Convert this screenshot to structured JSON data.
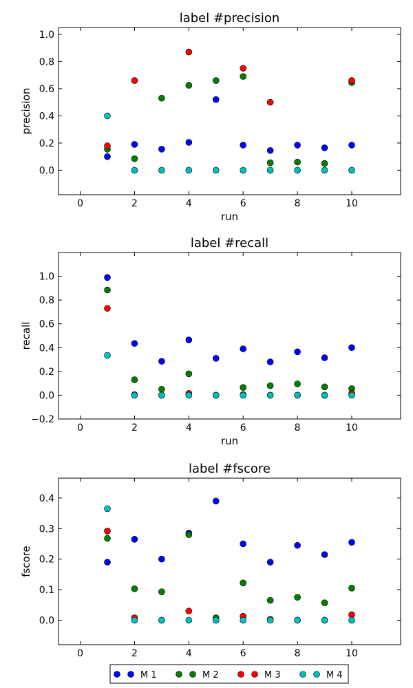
{
  "chart_data": [
    {
      "type": "scatter",
      "title": "label #precision",
      "xlabel": "run",
      "ylabel": "precision",
      "xlim": [
        -0.8,
        11.8
      ],
      "ylim": [
        -0.18,
        1.05
      ],
      "x_ticks": [
        0,
        2,
        4,
        6,
        8,
        10
      ],
      "x_tick_labels": [
        "0",
        "2",
        "4",
        "6",
        "8",
        "10"
      ],
      "y_ticks": [
        0.0,
        0.2,
        0.4,
        0.6,
        0.8,
        1.0
      ],
      "y_tick_labels": [
        "0.0",
        "0.2",
        "0.4",
        "0.6",
        "0.8",
        "1.0"
      ],
      "x": [
        1,
        2,
        3,
        4,
        5,
        6,
        7,
        8,
        9,
        10
      ],
      "series": [
        {
          "name": "M 1",
          "values": [
            0.1,
            0.19,
            0.155,
            0.205,
            0.52,
            0.185,
            0.145,
            0.185,
            0.165,
            0.185
          ]
        },
        {
          "name": "M 2",
          "values": [
            0.155,
            0.085,
            0.53,
            0.625,
            0.66,
            0.69,
            0.055,
            0.06,
            0.05,
            0.645
          ]
        },
        {
          "name": "M 3",
          "values": [
            0.18,
            0.66,
            null,
            0.87,
            null,
            0.75,
            0.5,
            null,
            null,
            0.66
          ]
        },
        {
          "name": "M 4",
          "values": [
            0.4,
            0.0,
            0.0,
            0.0,
            0.0,
            0.0,
            0.0,
            0.0,
            0.0,
            0.0
          ]
        }
      ]
    },
    {
      "type": "scatter",
      "title": "label #recall",
      "xlabel": "run",
      "ylabel": "recall",
      "xlim": [
        -0.8,
        11.8
      ],
      "ylim": [
        -0.2,
        1.2
      ],
      "x_ticks": [
        0,
        2,
        4,
        6,
        8,
        10
      ],
      "x_tick_labels": [
        "0",
        "2",
        "4",
        "6",
        "8",
        "10"
      ],
      "y_ticks": [
        -0.2,
        0.0,
        0.2,
        0.4,
        0.6,
        0.8,
        1.0
      ],
      "y_tick_labels": [
        "−0.2",
        "0.0",
        "0.2",
        "0.4",
        "0.6",
        "0.8",
        "1.0"
      ],
      "x": [
        1,
        2,
        3,
        4,
        5,
        6,
        7,
        8,
        9,
        10
      ],
      "series": [
        {
          "name": "M 1",
          "values": [
            0.99,
            0.435,
            0.285,
            0.465,
            0.31,
            0.39,
            0.28,
            0.365,
            0.315,
            0.4
          ]
        },
        {
          "name": "M 2",
          "values": [
            0.885,
            0.13,
            0.05,
            0.18,
            0.0,
            0.065,
            0.08,
            0.095,
            0.07,
            0.055
          ]
        },
        {
          "name": "M 3",
          "values": [
            0.73,
            0.005,
            0.0,
            0.015,
            0.0,
            0.005,
            0.0,
            0.0,
            0.0,
            0.015
          ]
        },
        {
          "name": "M 4",
          "values": [
            0.335,
            0.0,
            0.0,
            0.0,
            0.0,
            0.0,
            0.0,
            0.0,
            0.0,
            0.0
          ]
        }
      ]
    },
    {
      "type": "scatter",
      "title": "label #fscore",
      "xlabel": "",
      "ylabel": "fscore",
      "xlim": [
        -0.8,
        11.8
      ],
      "ylim": [
        -0.08,
        0.465
      ],
      "x_ticks": [
        0,
        2,
        4,
        6,
        8,
        10
      ],
      "x_tick_labels": [
        "0",
        "2",
        "4",
        "6",
        "8",
        "10"
      ],
      "y_ticks": [
        0.0,
        0.1,
        0.2,
        0.3,
        0.4
      ],
      "y_tick_labels": [
        "0.0",
        "0.1",
        "0.2",
        "0.3",
        "0.4"
      ],
      "x": [
        1,
        2,
        3,
        4,
        5,
        6,
        7,
        8,
        9,
        10
      ],
      "series": [
        {
          "name": "M 1",
          "values": [
            0.19,
            0.265,
            0.2,
            0.285,
            0.39,
            0.25,
            0.19,
            0.245,
            0.215,
            0.255
          ]
        },
        {
          "name": "M 2",
          "values": [
            0.268,
            0.103,
            0.093,
            0.28,
            0.008,
            0.122,
            0.065,
            0.075,
            0.057,
            0.105
          ]
        },
        {
          "name": "M 3",
          "values": [
            0.292,
            0.008,
            0.0,
            0.03,
            0.0,
            0.013,
            0.003,
            0.0,
            0.0,
            0.018
          ]
        },
        {
          "name": "M 4",
          "values": [
            0.365,
            0.0,
            0.0,
            0.0,
            0.0,
            0.0,
            0.0,
            0.0,
            0.0,
            0.0
          ]
        }
      ]
    }
  ],
  "legend": {
    "placement": "bottom-center",
    "items": [
      {
        "label": "M 1",
        "color": "#0000ff"
      },
      {
        "label": "M 2",
        "color": "#008000"
      },
      {
        "label": "M 3",
        "color": "#ff0000"
      },
      {
        "label": "M 4",
        "color": "#00bfbf"
      }
    ]
  },
  "colors": {
    "M 1": "#0000ff",
    "M 2": "#008000",
    "M 3": "#ff0000",
    "M 4": "#00bfbf"
  }
}
